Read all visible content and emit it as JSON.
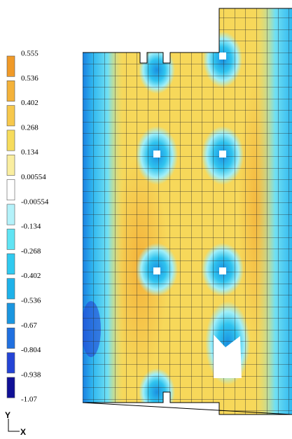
{
  "legend": {
    "labels": [
      "0.555",
      "0.536",
      "0.402",
      "0.268",
      "0.134",
      "0.00554",
      "-0.00554",
      "-0.134",
      "-0.268",
      "-0.402",
      "-0.536",
      "-0.67",
      "-0.804",
      "-0.938",
      "-1.07"
    ],
    "colors": [
      "#f09a28",
      "#f4b23a",
      "#f7c84c",
      "#f7dc5c",
      "#faeea0",
      "#ffffff",
      "#b4f2fa",
      "#60e4f4",
      "#30caf0",
      "#1eb2ea",
      "#1a96e0",
      "#2070e0",
      "#2444d6",
      "#101096"
    ]
  },
  "axes": {
    "y": "Y",
    "x": "X"
  }
}
